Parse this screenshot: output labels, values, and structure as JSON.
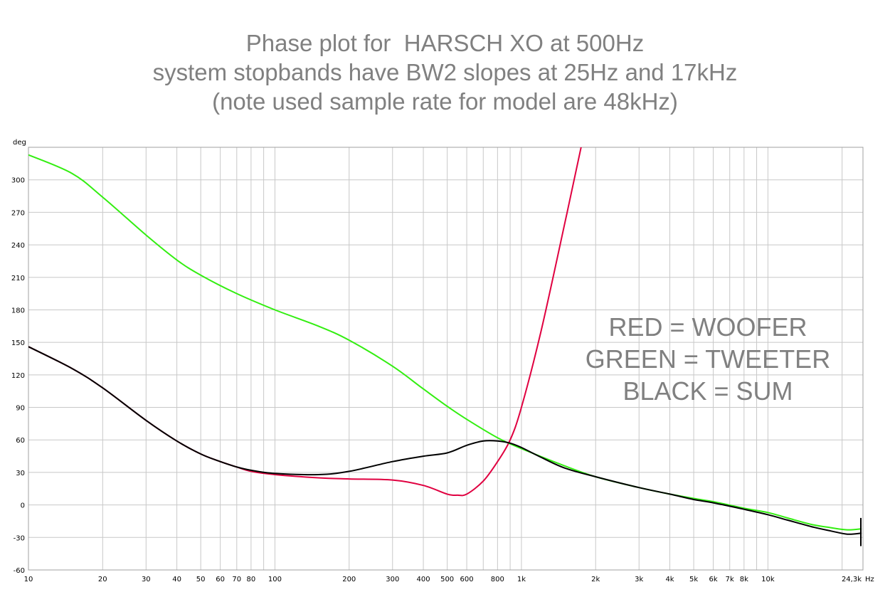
{
  "title_lines": [
    "Phase plot for  HARSCH XO at 500Hz",
    "system stopbands have BW2 slopes at 25Hz and 17kHz",
    "(note used sample rate for model are 48kHz)"
  ],
  "legend_lines": [
    "RED = WOOFER",
    "GREEN = TWEETER",
    "BLACK = SUM"
  ],
  "chart_data": {
    "type": "line",
    "title": "Phase plot for  HARSCH XO at 500Hz",
    "ylabel": "deg",
    "xunit": "Hz",
    "xscale": "log",
    "xlim": [
      10,
      24300
    ],
    "ylim": [
      -60,
      330
    ],
    "grid": true,
    "y_ticks": [
      -60,
      -30,
      0,
      30,
      60,
      90,
      120,
      150,
      180,
      210,
      240,
      270,
      300
    ],
    "x_ticks": [
      {
        "v": 10,
        "label": "10"
      },
      {
        "v": 20,
        "label": "20"
      },
      {
        "v": 30,
        "label": "30"
      },
      {
        "v": 40,
        "label": "40"
      },
      {
        "v": 50,
        "label": "50"
      },
      {
        "v": 60,
        "label": "60"
      },
      {
        "v": 70,
        "label": "70"
      },
      {
        "v": 80,
        "label": "80"
      },
      {
        "v": 100,
        "label": "100"
      },
      {
        "v": 200,
        "label": "200"
      },
      {
        "v": 300,
        "label": "300"
      },
      {
        "v": 400,
        "label": "400"
      },
      {
        "v": 500,
        "label": "500"
      },
      {
        "v": 600,
        "label": "600"
      },
      {
        "v": 800,
        "label": "800"
      },
      {
        "v": 1000,
        "label": "1k"
      },
      {
        "v": 2000,
        "label": "2k"
      },
      {
        "v": 3000,
        "label": "3k"
      },
      {
        "v": 4000,
        "label": "4k"
      },
      {
        "v": 5000,
        "label": "5k"
      },
      {
        "v": 6000,
        "label": "6k"
      },
      {
        "v": 7000,
        "label": "7k"
      },
      {
        "v": 8000,
        "label": "8k"
      },
      {
        "v": 10000,
        "label": "10k"
      },
      {
        "v": 24300,
        "label": "24,3k"
      }
    ],
    "x_unit_label": "Hz",
    "series": [
      {
        "name": "WOOFER",
        "color": "#e00040",
        "points": [
          [
            10,
            146
          ],
          [
            15,
            126
          ],
          [
            20,
            108
          ],
          [
            30,
            78
          ],
          [
            40,
            59
          ],
          [
            50,
            47
          ],
          [
            60,
            40
          ],
          [
            70,
            35
          ],
          [
            80,
            31
          ],
          [
            100,
            28
          ],
          [
            150,
            25
          ],
          [
            200,
            24
          ],
          [
            300,
            23
          ],
          [
            400,
            18
          ],
          [
            500,
            10
          ],
          [
            550,
            9
          ],
          [
            600,
            10
          ],
          [
            700,
            22
          ],
          [
            800,
            40
          ],
          [
            900,
            60
          ],
          [
            1000,
            90
          ],
          [
            1200,
            160
          ],
          [
            1500,
            260
          ],
          [
            1750,
            331
          ]
        ]
      },
      {
        "name": "TWEETER",
        "color": "#33ee11",
        "points": [
          [
            10,
            323
          ],
          [
            15,
            306
          ],
          [
            20,
            284
          ],
          [
            30,
            249
          ],
          [
            40,
            226
          ],
          [
            50,
            212
          ],
          [
            70,
            195
          ],
          [
            100,
            180
          ],
          [
            150,
            165
          ],
          [
            200,
            152
          ],
          [
            300,
            128
          ],
          [
            400,
            107
          ],
          [
            500,
            91
          ],
          [
            600,
            79
          ],
          [
            800,
            62
          ],
          [
            1000,
            52
          ],
          [
            1500,
            36
          ],
          [
            2000,
            26
          ],
          [
            3000,
            16
          ],
          [
            4000,
            10
          ],
          [
            5000,
            6
          ],
          [
            6000,
            3
          ],
          [
            8000,
            -3
          ],
          [
            10000,
            -7
          ],
          [
            12000,
            -12
          ],
          [
            15000,
            -18
          ],
          [
            18000,
            -21
          ],
          [
            21000,
            -23
          ],
          [
            24000,
            -22
          ]
        ]
      },
      {
        "name": "SUM",
        "color": "#000000",
        "points": [
          [
            10,
            146
          ],
          [
            15,
            126
          ],
          [
            20,
            108
          ],
          [
            30,
            78
          ],
          [
            40,
            59
          ],
          [
            50,
            47
          ],
          [
            60,
            40
          ],
          [
            70,
            35
          ],
          [
            80,
            32
          ],
          [
            100,
            29
          ],
          [
            150,
            28
          ],
          [
            200,
            31
          ],
          [
            300,
            40
          ],
          [
            400,
            45
          ],
          [
            500,
            48
          ],
          [
            600,
            55
          ],
          [
            700,
            59
          ],
          [
            800,
            59
          ],
          [
            900,
            57
          ],
          [
            1000,
            53
          ],
          [
            1200,
            44
          ],
          [
            1500,
            34
          ],
          [
            2000,
            26
          ],
          [
            3000,
            16
          ],
          [
            4000,
            10
          ],
          [
            5000,
            5
          ],
          [
            6000,
            2
          ],
          [
            8000,
            -4
          ],
          [
            10000,
            -9
          ],
          [
            12000,
            -14
          ],
          [
            15000,
            -20
          ],
          [
            18000,
            -24
          ],
          [
            21000,
            -27
          ],
          [
            24000,
            -26
          ]
        ]
      }
    ]
  }
}
